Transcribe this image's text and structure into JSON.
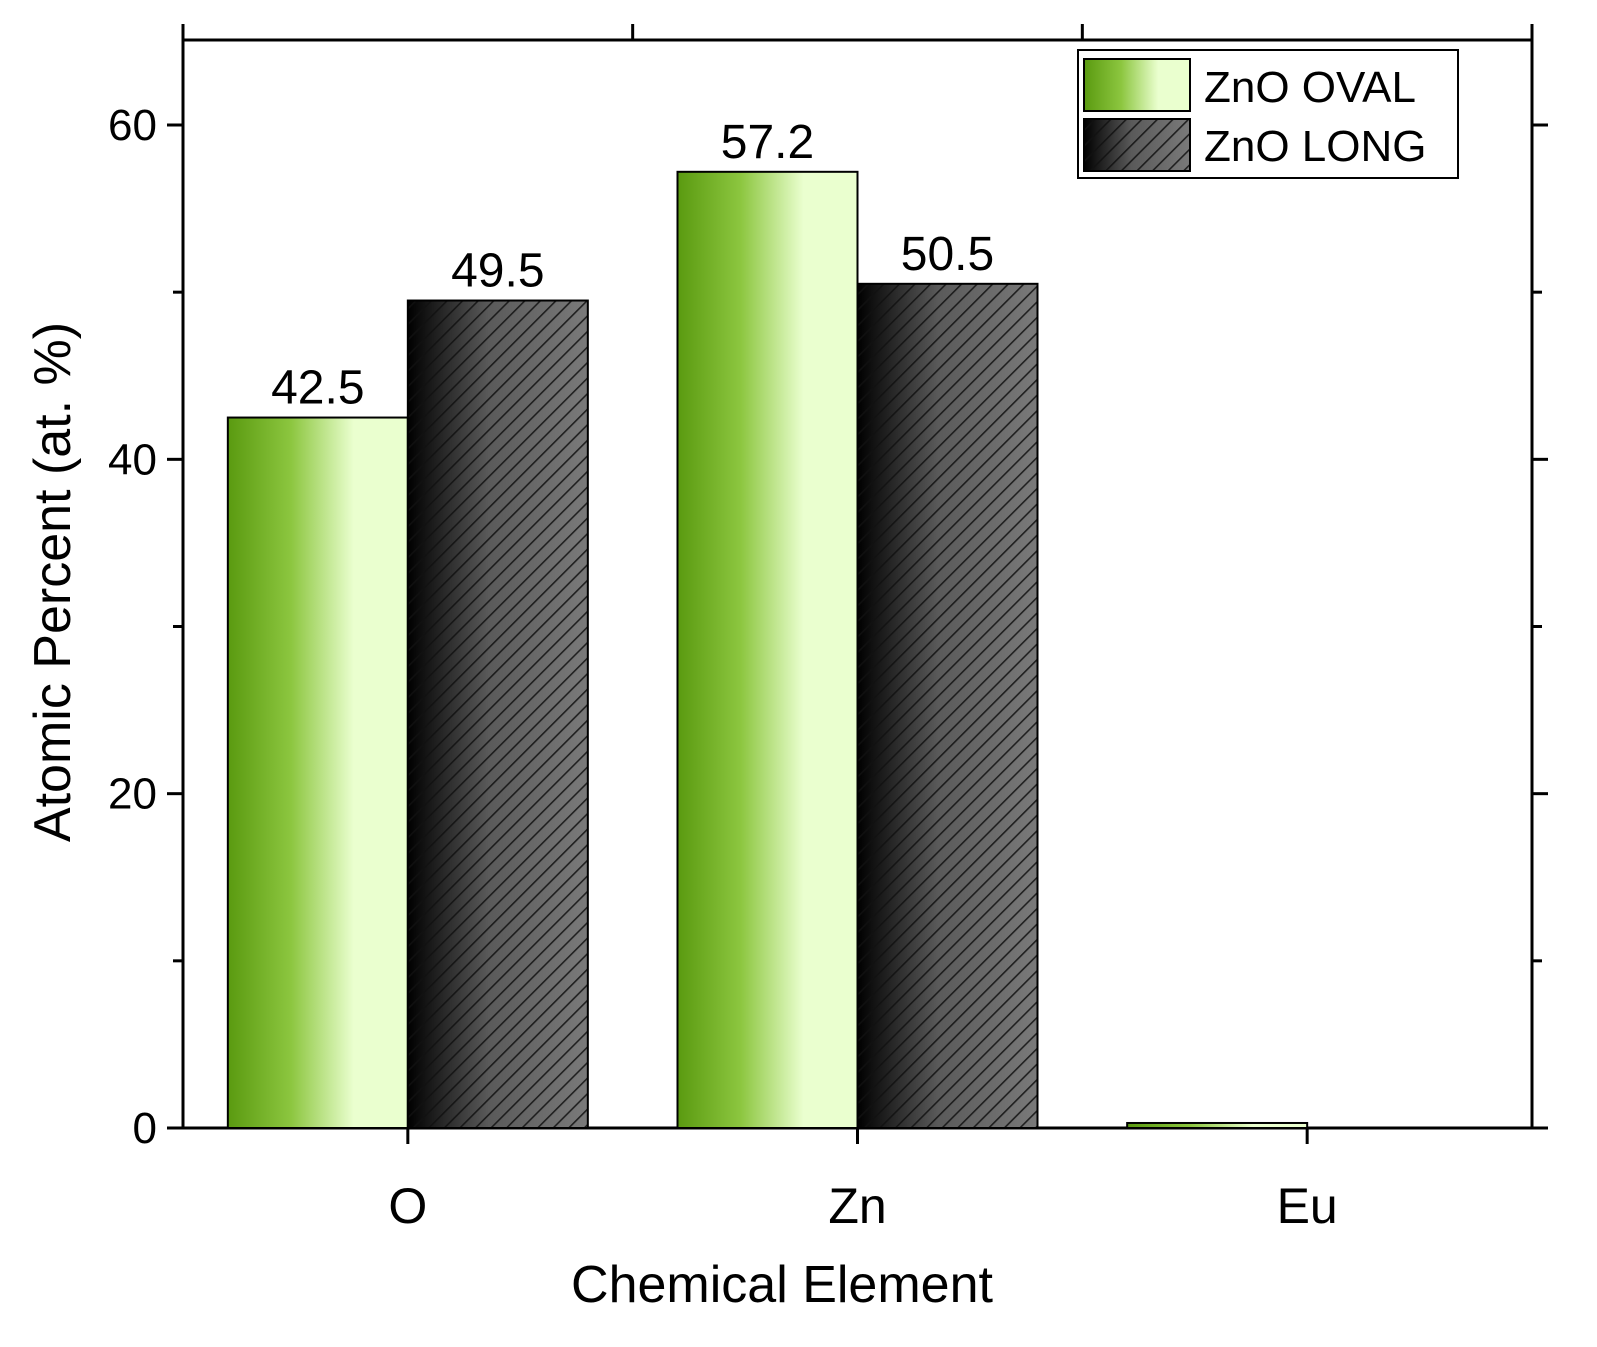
{
  "chart_data": {
    "type": "bar",
    "xlabel": "Chemical Element",
    "ylabel": "Atomic Percent (at. %)",
    "categories": [
      "O",
      "Zn",
      "Eu"
    ],
    "series": [
      {
        "name": "ZnO OVAL",
        "values": [
          42.5,
          57.2,
          0.3
        ],
        "data_labels": [
          "42.5",
          "57.2",
          ""
        ],
        "style": "green-gradient"
      },
      {
        "name": "ZnO LONG",
        "values": [
          49.5,
          50.5,
          0
        ],
        "data_labels": [
          "49.5",
          "50.5",
          ""
        ],
        "style": "black-gray-hatched"
      }
    ],
    "ylim": [
      0,
      60
    ],
    "yticks": [
      0,
      20,
      40,
      60
    ],
    "yminor_ticks": [
      10,
      30,
      50
    ],
    "grid": false,
    "legend_position": "top-right",
    "colors": {
      "oval_dark": "#5a9a10",
      "oval_mid": "#8cc63f",
      "oval_light": "#eaffcf",
      "long_dark": "#000000",
      "long_light": "#7a7a7a"
    }
  }
}
